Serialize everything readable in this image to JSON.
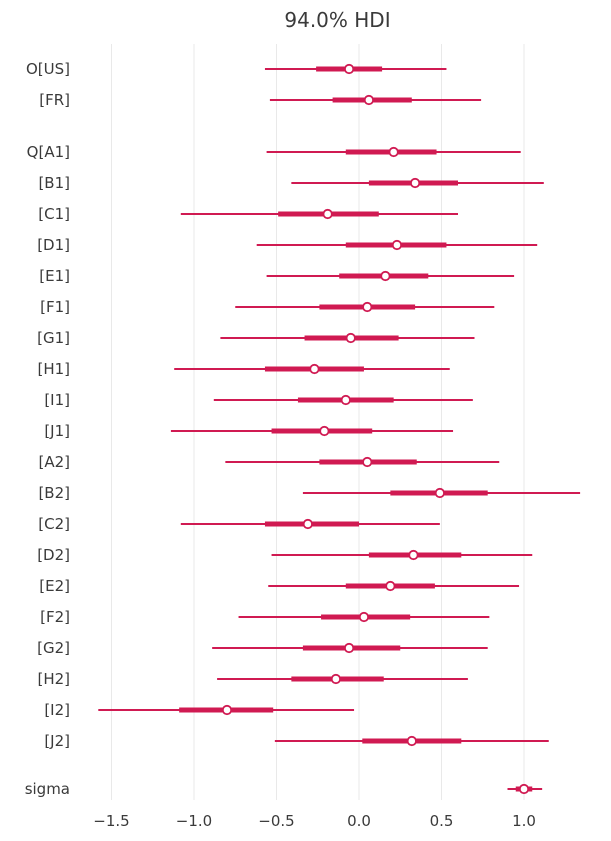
{
  "chart_data": {
    "type": "forest",
    "title": "94.0% HDI",
    "hdi_probability": "94.0%",
    "xlabel": "",
    "xticks": [
      -1.5,
      -1.0,
      -0.5,
      0.0,
      0.5,
      1.0
    ],
    "xtick_labels": [
      "−1.5",
      "−1.0",
      "−0.5",
      "0.0",
      "0.5",
      "1.0"
    ],
    "xlim": [
      -1.73,
      1.47
    ],
    "grid": "vertical-only",
    "legend": "none",
    "colors": {
      "interval": "#d01a52",
      "grid": "#e9e9e9",
      "text": "#3a3a3a",
      "background": "#ffffff",
      "point_fill": "#ffffff"
    },
    "rows": [
      {
        "label": "O[US]",
        "hdi_low": -0.57,
        "q25": -0.26,
        "median": -0.06,
        "q75": 0.14,
        "hdi_high": 0.53
      },
      {
        "label": "[FR]",
        "hdi_low": -0.54,
        "q25": -0.16,
        "median": 0.06,
        "q75": 0.32,
        "hdi_high": 0.74
      },
      {
        "label": "Q[A1]",
        "hdi_low": -0.56,
        "q25": -0.08,
        "median": 0.21,
        "q75": 0.47,
        "hdi_high": 0.98
      },
      {
        "label": "[B1]",
        "hdi_low": -0.41,
        "q25": 0.06,
        "median": 0.34,
        "q75": 0.6,
        "hdi_high": 1.12
      },
      {
        "label": "[C1]",
        "hdi_low": -1.08,
        "q25": -0.49,
        "median": -0.19,
        "q75": 0.12,
        "hdi_high": 0.6
      },
      {
        "label": "[D1]",
        "hdi_low": -0.62,
        "q25": -0.08,
        "median": 0.23,
        "q75": 0.53,
        "hdi_high": 1.08
      },
      {
        "label": "[E1]",
        "hdi_low": -0.56,
        "q25": -0.12,
        "median": 0.16,
        "q75": 0.42,
        "hdi_high": 0.94
      },
      {
        "label": "[F1]",
        "hdi_low": -0.75,
        "q25": -0.24,
        "median": 0.05,
        "q75": 0.34,
        "hdi_high": 0.82
      },
      {
        "label": "[G1]",
        "hdi_low": -0.84,
        "q25": -0.33,
        "median": -0.05,
        "q75": 0.24,
        "hdi_high": 0.7
      },
      {
        "label": "[H1]",
        "hdi_low": -1.12,
        "q25": -0.57,
        "median": -0.27,
        "q75": 0.03,
        "hdi_high": 0.55
      },
      {
        "label": "[I1]",
        "hdi_low": -0.88,
        "q25": -0.37,
        "median": -0.08,
        "q75": 0.21,
        "hdi_high": 0.69
      },
      {
        "label": "[J1]",
        "hdi_low": -1.14,
        "q25": -0.53,
        "median": -0.21,
        "q75": 0.08,
        "hdi_high": 0.57
      },
      {
        "label": "[A2]",
        "hdi_low": -0.81,
        "q25": -0.24,
        "median": 0.05,
        "q75": 0.35,
        "hdi_high": 0.85
      },
      {
        "label": "[B2]",
        "hdi_low": -0.34,
        "q25": 0.19,
        "median": 0.49,
        "q75": 0.78,
        "hdi_high": 1.34
      },
      {
        "label": "[C2]",
        "hdi_low": -1.08,
        "q25": -0.57,
        "median": -0.31,
        "q75": 0.0,
        "hdi_high": 0.49
      },
      {
        "label": "[D2]",
        "hdi_low": -0.53,
        "q25": 0.06,
        "median": 0.33,
        "q75": 0.62,
        "hdi_high": 1.05
      },
      {
        "label": "[E2]",
        "hdi_low": -0.55,
        "q25": -0.08,
        "median": 0.19,
        "q75": 0.46,
        "hdi_high": 0.97
      },
      {
        "label": "[F2]",
        "hdi_low": -0.73,
        "q25": -0.23,
        "median": 0.03,
        "q75": 0.31,
        "hdi_high": 0.79
      },
      {
        "label": "[G2]",
        "hdi_low": -0.89,
        "q25": -0.34,
        "median": -0.06,
        "q75": 0.25,
        "hdi_high": 0.78
      },
      {
        "label": "[H2]",
        "hdi_low": -0.86,
        "q25": -0.41,
        "median": -0.14,
        "q75": 0.15,
        "hdi_high": 0.66
      },
      {
        "label": "[I2]",
        "hdi_low": -1.58,
        "q25": -1.09,
        "median": -0.8,
        "q75": -0.52,
        "hdi_high": -0.03
      },
      {
        "label": "[J2]",
        "hdi_low": -0.51,
        "q25": 0.02,
        "median": 0.32,
        "q75": 0.62,
        "hdi_high": 1.15
      },
      {
        "label": "sigma",
        "hdi_low": 0.9,
        "q25": 0.95,
        "median": 1.0,
        "q75": 1.05,
        "hdi_high": 1.11
      }
    ]
  }
}
